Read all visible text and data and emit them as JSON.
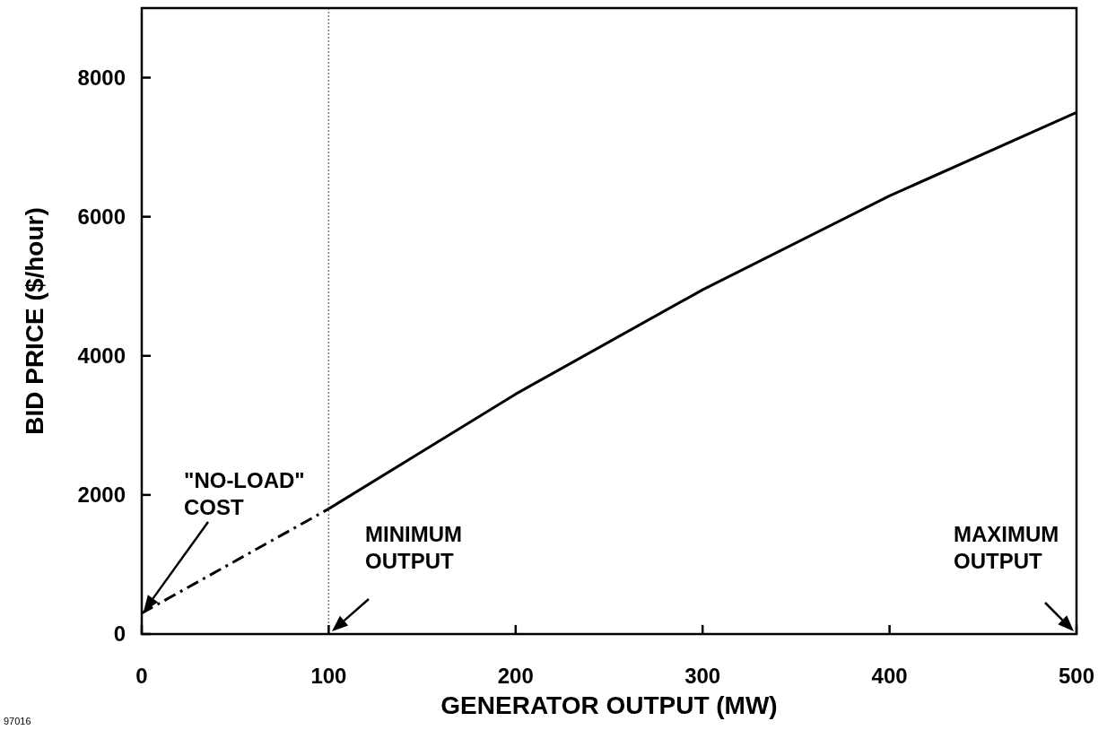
{
  "chart_data": {
    "type": "line",
    "xlabel": "GENERATOR OUTPUT (MW)",
    "ylabel": "BID PRICE ($/hour)",
    "xlim": [
      0,
      500
    ],
    "xticks": [
      0,
      100,
      200,
      300,
      400,
      500
    ],
    "ylim": [
      0,
      9000
    ],
    "yticks": [
      0,
      2000,
      4000,
      6000,
      8000
    ],
    "grid": false,
    "marker": "none",
    "series": [
      {
        "x": [
          0,
          100
        ],
        "values": [
          300,
          1800
        ],
        "color": "#000000",
        "line_style": "dashdot"
      },
      {
        "x": [
          100,
          200,
          300,
          400,
          500
        ],
        "values": [
          1800,
          3450,
          4950,
          6300,
          7500
        ],
        "color": "#000000",
        "line_style": "solid"
      }
    ],
    "ref_lines": [
      {
        "axis": "x",
        "value": 100,
        "color": "#808080",
        "line_style": "dotted"
      }
    ],
    "annotations": [
      "\"NO-LOAD\"\nCOST",
      "MINIMUM\nOUTPUT",
      "MAXIMUM\nOUTPUT",
      "97016"
    ]
  }
}
